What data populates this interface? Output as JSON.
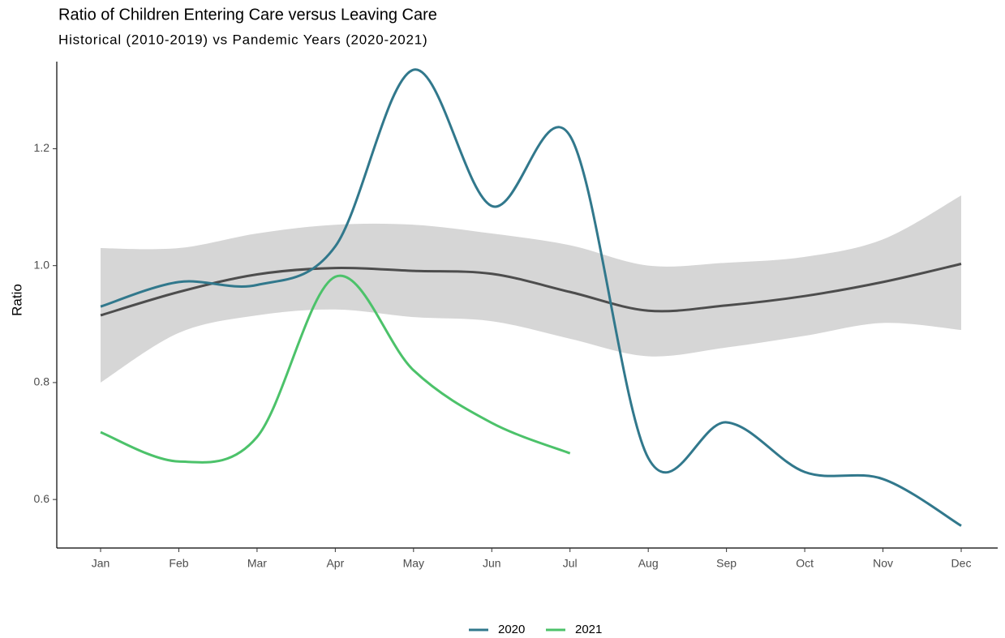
{
  "chart_data": {
    "type": "line",
    "title": "Ratio of Children Entering Care versus Leaving Care",
    "subtitle": "Historical (2010-2019) vs Pandemic Years (2020-2021)",
    "y_label": "Ratio",
    "categories": [
      "Jan",
      "Feb",
      "Mar",
      "Apr",
      "May",
      "Jun",
      "Jul",
      "Aug",
      "Sep",
      "Oct",
      "Nov",
      "Dec"
    ],
    "series": [
      {
        "name": "2020",
        "color": "#31788c",
        "values": [
          0.93,
          0.972,
          0.967,
          1.033,
          1.335,
          1.102,
          1.222,
          0.671,
          0.732,
          0.647,
          0.635,
          0.555
        ]
      },
      {
        "name": "2021",
        "color": "#4cc26a",
        "values": [
          0.715,
          0.665,
          0.707,
          0.981,
          0.821,
          0.731,
          0.679,
          null,
          null,
          null,
          null,
          null
        ]
      }
    ],
    "trend": {
      "color": "#4d4d4d",
      "band_color": "#d6d6d6",
      "values": [
        0.915,
        0.955,
        0.985,
        0.996,
        0.991,
        0.986,
        0.955,
        0.923,
        0.932,
        0.948,
        0.972,
        1.003
      ],
      "lower": [
        0.8,
        0.885,
        0.915,
        0.925,
        0.912,
        0.905,
        0.875,
        0.845,
        0.86,
        0.88,
        0.902,
        0.89
      ],
      "upper": [
        1.03,
        1.03,
        1.055,
        1.07,
        1.07,
        1.055,
        1.035,
        1.0,
        1.005,
        1.015,
        1.045,
        1.12
      ]
    },
    "ylim": [
      0.517,
      1.349
    ],
    "yticks": [
      0.6,
      0.8,
      {
        "value": 1,
        "label": "1.0"
      },
      1.2
    ],
    "legend": "bottom"
  }
}
